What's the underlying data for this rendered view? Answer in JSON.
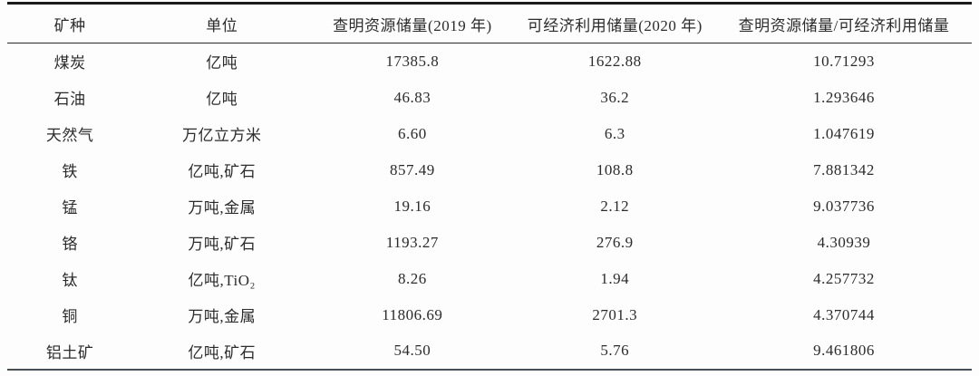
{
  "table": {
    "columns": [
      "矿种",
      "单位",
      "查明资源储量(2019 年)",
      "可经济利用储量(2020 年)",
      "查明资源储量/可经济利用储量"
    ],
    "rows": [
      [
        "煤炭",
        "亿吨",
        "17385.8",
        "1622.88",
        "10.71293"
      ],
      [
        "石油",
        "亿吨",
        "46.83",
        "36.2",
        "1.293646"
      ],
      [
        "天然气",
        "万亿立方米",
        "6.60",
        "6.3",
        "1.047619"
      ],
      [
        "铁",
        "亿吨,矿石",
        "857.49",
        "108.8",
        "7.881342"
      ],
      [
        "锰",
        "万吨,金属",
        "19.16",
        "2.12",
        "9.037736"
      ],
      [
        "铬",
        "万吨,矿石",
        "1193.27",
        "276.9",
        "4.30939"
      ],
      [
        "钛",
        "亿吨,TiO₂",
        "8.26",
        "1.94",
        "4.257732"
      ],
      [
        "铜",
        "万吨,金属",
        "11806.69",
        "2701.3",
        "4.370744"
      ],
      [
        "铝土矿",
        "亿吨,矿石",
        "54.50",
        "5.76",
        "9.461806"
      ]
    ]
  }
}
